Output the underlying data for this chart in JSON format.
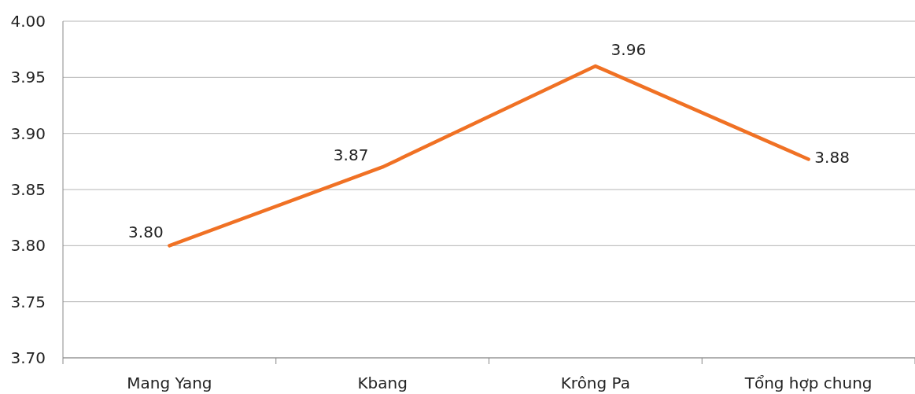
{
  "chart_data": {
    "type": "line",
    "categories": [
      "Mang Yang",
      "Kbang",
      "Krông Pa",
      "Tổng hợp chung"
    ],
    "series": [
      {
        "color": "#f07124",
        "values": [
          3.8,
          3.87,
          3.96,
          3.877
        ],
        "value_labels": [
          "3.80",
          "3.87",
          "3.96",
          "3.88"
        ]
      }
    ],
    "ylim": [
      3.7,
      4.0
    ],
    "yticks": [
      {
        "value": 3.7,
        "label": "3.70"
      },
      {
        "value": 3.75,
        "label": "3.75"
      },
      {
        "value": 3.8,
        "label": "3.80"
      },
      {
        "value": 3.85,
        "label": "3.85"
      },
      {
        "value": 3.9,
        "label": "3.90"
      },
      {
        "value": 3.95,
        "label": "3.95"
      },
      {
        "value": 4.0,
        "label": "4.00"
      }
    ],
    "grid": "y",
    "marker": "none",
    "line_style": "solid"
  }
}
